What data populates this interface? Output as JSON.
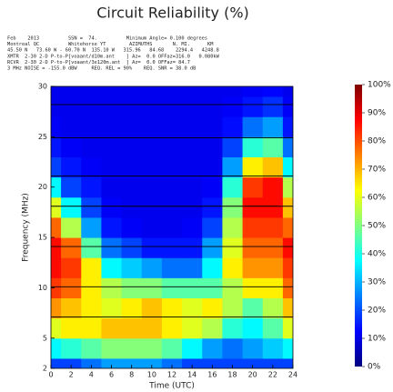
{
  "chart_data": {
    "type": "heatmap",
    "title": "Circuit Reliability (%)",
    "header_lines": [
      "Feb    2013          SSN =  74.          Minimum Angle= 0.100 degrees",
      "Montreal QC          Whitehorse YT        AZIMUTHS       N. MI.      KM",
      "45.50 N   73.60 W - 60.70 N  135.10 W   315.96   84.68    2294.4   4248.8",
      "XMTR  2-30 2-D P-to-P[voaant/d10m.ant    ] Az=  0.0 OFFaz=316.0   0.080kW",
      "RCVR  2-30 2-D P-to-P[voaant/3e120m.ant  ] Az=  0.0 OFFaz= 84.7",
      "3 MHz NOISE = -155.0 dBW     REQ. REL = 90%    REQ. SNR = 38.0 dB"
    ],
    "x_label": "Time (UTC)",
    "y_label": "Frequency (MHz)",
    "x": [
      0,
      2,
      4,
      6,
      8,
      10,
      12,
      14,
      16,
      18,
      20,
      22,
      24
    ],
    "y": [
      2,
      4,
      6,
      8,
      10,
      12,
      14,
      16,
      18,
      20,
      22,
      24,
      26,
      28,
      30
    ],
    "z": [
      [
        10,
        10,
        15,
        20,
        20,
        20,
        15,
        10,
        10,
        10,
        10,
        10,
        10
      ],
      [
        30,
        35,
        40,
        45,
        45,
        45,
        40,
        30,
        20,
        15,
        20,
        25,
        30
      ],
      [
        55,
        60,
        60,
        65,
        65,
        65,
        60,
        55,
        50,
        35,
        30,
        40,
        55
      ],
      [
        70,
        65,
        60,
        55,
        60,
        65,
        60,
        55,
        60,
        50,
        40,
        50,
        65
      ],
      [
        80,
        75,
        60,
        50,
        45,
        45,
        40,
        40,
        40,
        50,
        60,
        60,
        75
      ],
      [
        85,
        80,
        60,
        30,
        25,
        20,
        15,
        15,
        30,
        60,
        70,
        70,
        80
      ],
      [
        85,
        75,
        40,
        15,
        10,
        5,
        5,
        5,
        20,
        55,
        75,
        75,
        85
      ],
      [
        75,
        50,
        20,
        5,
        2,
        1,
        1,
        2,
        10,
        50,
        80,
        80,
        75
      ],
      [
        55,
        30,
        10,
        2,
        1,
        1,
        1,
        1,
        5,
        45,
        85,
        85,
        65
      ],
      [
        30,
        10,
        5,
        1,
        1,
        1,
        1,
        1,
        2,
        35,
        80,
        85,
        50
      ],
      [
        10,
        5,
        2,
        1,
        1,
        1,
        1,
        1,
        1,
        20,
        60,
        65,
        30
      ],
      [
        5,
        2,
        1,
        1,
        1,
        1,
        1,
        1,
        1,
        10,
        35,
        40,
        15
      ],
      [
        2,
        1,
        1,
        1,
        1,
        1,
        1,
        1,
        1,
        4,
        15,
        20,
        5
      ],
      [
        1,
        1,
        1,
        1,
        1,
        1,
        1,
        1,
        1,
        2,
        5,
        8,
        2
      ],
      [
        1,
        1,
        1,
        1,
        1,
        1,
        1,
        1,
        1,
        1,
        2,
        3,
        1
      ]
    ],
    "band_lines": [
      7.1,
      10.1,
      14.1,
      18.1,
      21.1,
      24.9,
      28.2
    ],
    "xlim": [
      0,
      24
    ],
    "ylim": [
      2,
      30
    ],
    "xticks": [
      0,
      2,
      4,
      6,
      8,
      10,
      12,
      14,
      16,
      18,
      20,
      22,
      24
    ],
    "yticks": [
      2,
      5,
      10,
      15,
      20,
      25,
      30
    ],
    "zlim": [
      0,
      100
    ],
    "zticks": [
      {
        "value": 0,
        "label": "0%"
      },
      {
        "value": 10,
        "label": "10%"
      },
      {
        "value": 20,
        "label": "20%"
      },
      {
        "value": 30,
        "label": "30%"
      },
      {
        "value": 40,
        "label": "40%"
      },
      {
        "value": 50,
        "label": "50%"
      },
      {
        "value": 60,
        "label": "60%"
      },
      {
        "value": 70,
        "label": "70%"
      },
      {
        "value": 80,
        "label": "80%"
      },
      {
        "value": 90,
        "label": "90%"
      },
      {
        "value": 100,
        "label": "100%"
      }
    ],
    "colormap": "jet"
  }
}
